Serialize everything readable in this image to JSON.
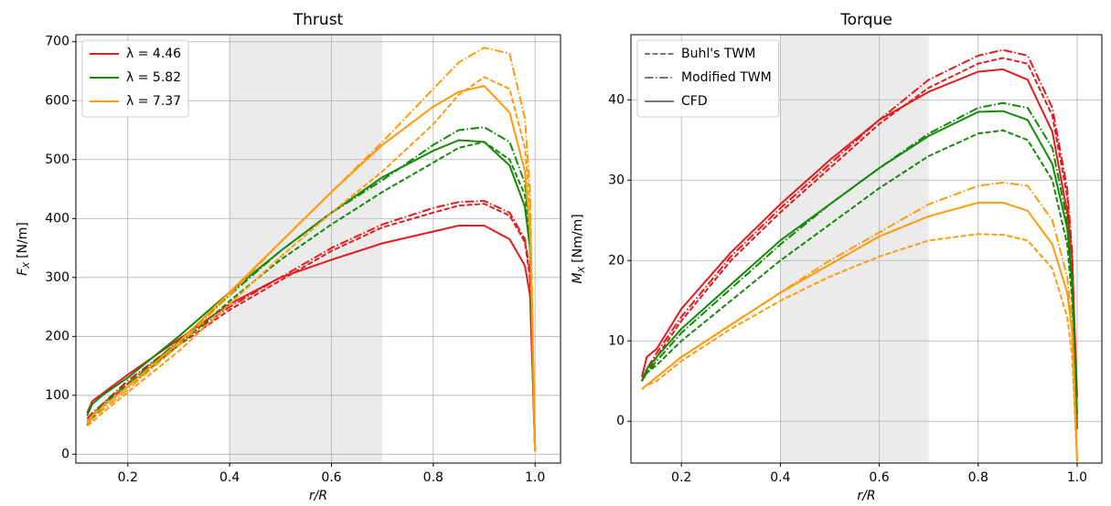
{
  "chart_data": [
    {
      "type": "line",
      "title": "Thrust",
      "xlabel": "r/R",
      "ylabel": {
        "main": "F",
        "sub": "X",
        "unit": "[N/m]"
      },
      "xlim": [
        0.098,
        1.05
      ],
      "ylim": [
        -15,
        712
      ],
      "xticks": [
        0.2,
        0.4,
        0.6,
        0.8,
        {
          "value": 1,
          "label": "1.0"
        }
      ],
      "yticks": [
        0,
        100,
        200,
        300,
        400,
        500,
        600,
        700
      ],
      "grid": true,
      "shaded_span": [
        0.4,
        0.7
      ],
      "legend": {
        "loc": "upper left",
        "entries": [
          {
            "name": "λ = 4.46",
            "color": "#e41a1c",
            "dash": "solid"
          },
          {
            "name": "λ = 5.82",
            "color": "#138a07",
            "dash": "solid"
          },
          {
            "name": "λ = 7.37",
            "color": "#ff9a0a",
            "dash": "solid"
          }
        ]
      },
      "x": [
        0.12,
        0.13,
        0.15,
        0.2,
        0.3,
        0.4,
        0.5,
        0.6,
        0.7,
        0.8,
        0.85,
        0.9,
        0.95,
        0.98,
        0.99,
        1.0
      ],
      "series": [
        {
          "color": "#e41a1c",
          "dash": "dashed",
          "values": [
            55,
            65,
            80,
            120,
            185,
            245,
            295,
            345,
            385,
            410,
            422,
            425,
            405,
            360,
            300,
            5
          ]
        },
        {
          "color": "#e41a1c",
          "dash": "dashdot",
          "values": [
            60,
            70,
            85,
            125,
            190,
            250,
            300,
            350,
            390,
            418,
            428,
            430,
            410,
            365,
            310,
            8
          ]
        },
        {
          "color": "#e41a1c",
          "dash": "solid",
          "values": [
            70,
            90,
            103,
            135,
            195,
            255,
            300,
            330,
            358,
            378,
            388,
            388,
            365,
            320,
            270,
            10
          ]
        },
        {
          "color": "#138a07",
          "dash": "dashed",
          "values": [
            50,
            60,
            80,
            115,
            185,
            260,
            330,
            390,
            445,
            495,
            520,
            530,
            500,
            440,
            370,
            5
          ]
        },
        {
          "color": "#138a07",
          "dash": "dashdot",
          "values": [
            55,
            65,
            85,
            120,
            192,
            270,
            345,
            410,
            465,
            525,
            550,
            555,
            530,
            460,
            380,
            8
          ]
        },
        {
          "color": "#138a07",
          "dash": "solid",
          "values": [
            65,
            85,
            100,
            130,
            200,
            275,
            345,
            410,
            470,
            515,
            533,
            530,
            490,
            420,
            350,
            8
          ]
        },
        {
          "color": "#ff9a0a",
          "dash": "dashed",
          "values": [
            48,
            55,
            70,
            105,
            175,
            255,
            335,
            410,
            480,
            560,
            610,
            640,
            620,
            520,
            420,
            5
          ]
        },
        {
          "color": "#ff9a0a",
          "dash": "dashdot",
          "values": [
            52,
            60,
            75,
            110,
            185,
            270,
            360,
            445,
            530,
            620,
            665,
            690,
            680,
            570,
            450,
            8
          ]
        },
        {
          "color": "#ff9a0a",
          "dash": "solid",
          "values": [
            55,
            65,
            80,
            115,
            190,
            275,
            360,
            445,
            525,
            590,
            615,
            625,
            580,
            480,
            380,
            10
          ]
        }
      ]
    },
    {
      "type": "line",
      "title": "Torque",
      "xlabel": "r/R",
      "ylabel": {
        "main": "M",
        "sub": "X",
        "unit": "[Nm/m]"
      },
      "xlim": [
        0.098,
        1.05
      ],
      "ylim": [
        -5.2,
        48.1
      ],
      "xticks": [
        0.2,
        0.4,
        0.6,
        0.8,
        {
          "value": 1,
          "label": "1.0"
        }
      ],
      "yticks": [
        0,
        10,
        20,
        30,
        40
      ],
      "grid": true,
      "shaded_span": [
        0.4,
        0.7
      ],
      "legend": {
        "loc": "upper left",
        "entries": [
          {
            "name": "Buhl's TWM",
            "color": "#777777",
            "dash": "dashed"
          },
          {
            "name": "Modified TWM",
            "color": "#777777",
            "dash": "dashdot"
          },
          {
            "name": "CFD",
            "color": "#777777",
            "dash": "solid"
          }
        ]
      },
      "x": [
        0.12,
        0.13,
        0.15,
        0.2,
        0.3,
        0.4,
        0.5,
        0.6,
        0.7,
        0.8,
        0.85,
        0.9,
        0.95,
        0.98,
        0.99,
        1.0
      ],
      "series": [
        {
          "color": "#e41a1c",
          "dash": "dashed",
          "values": [
            5,
            6,
            8,
            12.5,
            20,
            26,
            31.5,
            37,
            41.5,
            44.5,
            45.2,
            44.5,
            38,
            28,
            20,
            -1
          ]
        },
        {
          "color": "#e41a1c",
          "dash": "dashdot",
          "values": [
            5,
            6.5,
            8.5,
            13,
            20.5,
            26.5,
            32,
            37.5,
            42.5,
            45.5,
            46.2,
            45.5,
            39,
            29,
            21,
            0
          ]
        },
        {
          "color": "#e41a1c",
          "dash": "solid",
          "values": [
            5.5,
            8,
            9,
            14,
            21,
            27,
            32.5,
            37.5,
            41,
            43.5,
            43.8,
            42.5,
            36,
            26,
            20,
            3
          ]
        },
        {
          "color": "#138a07",
          "dash": "dashed",
          "values": [
            5,
            6,
            7,
            10,
            15,
            20,
            24.5,
            29,
            33,
            35.8,
            36.2,
            35,
            30,
            22,
            15,
            -1
          ]
        },
        {
          "color": "#138a07",
          "dash": "dashdot",
          "values": [
            5,
            6,
            7.5,
            11,
            16.5,
            22,
            27,
            31.5,
            35.8,
            39,
            39.6,
            39,
            34,
            25,
            17,
            0
          ]
        },
        {
          "color": "#138a07",
          "dash": "solid",
          "values": [
            5,
            6.5,
            8,
            11.5,
            17,
            22.5,
            27,
            31.5,
            35.5,
            38.5,
            38.6,
            37.5,
            32,
            24,
            17,
            1
          ]
        },
        {
          "color": "#ff9a0a",
          "dash": "dashed",
          "values": [
            4,
            4.5,
            5,
            7.5,
            11.5,
            15,
            18,
            20.5,
            22.5,
            23.3,
            23.2,
            22.5,
            19,
            13,
            8,
            -5
          ]
        },
        {
          "color": "#ff9a0a",
          "dash": "dashdot",
          "values": [
            4,
            4.5,
            5.5,
            8,
            12,
            16,
            20,
            23.5,
            27,
            29.3,
            29.7,
            29.3,
            25,
            18,
            12,
            -5
          ]
        },
        {
          "color": "#ff9a0a",
          "dash": "solid",
          "values": [
            4,
            4.5,
            5.5,
            8,
            12,
            16,
            19.5,
            23,
            25.5,
            27.2,
            27.2,
            26.2,
            22,
            16,
            11,
            -5
          ]
        }
      ]
    }
  ]
}
